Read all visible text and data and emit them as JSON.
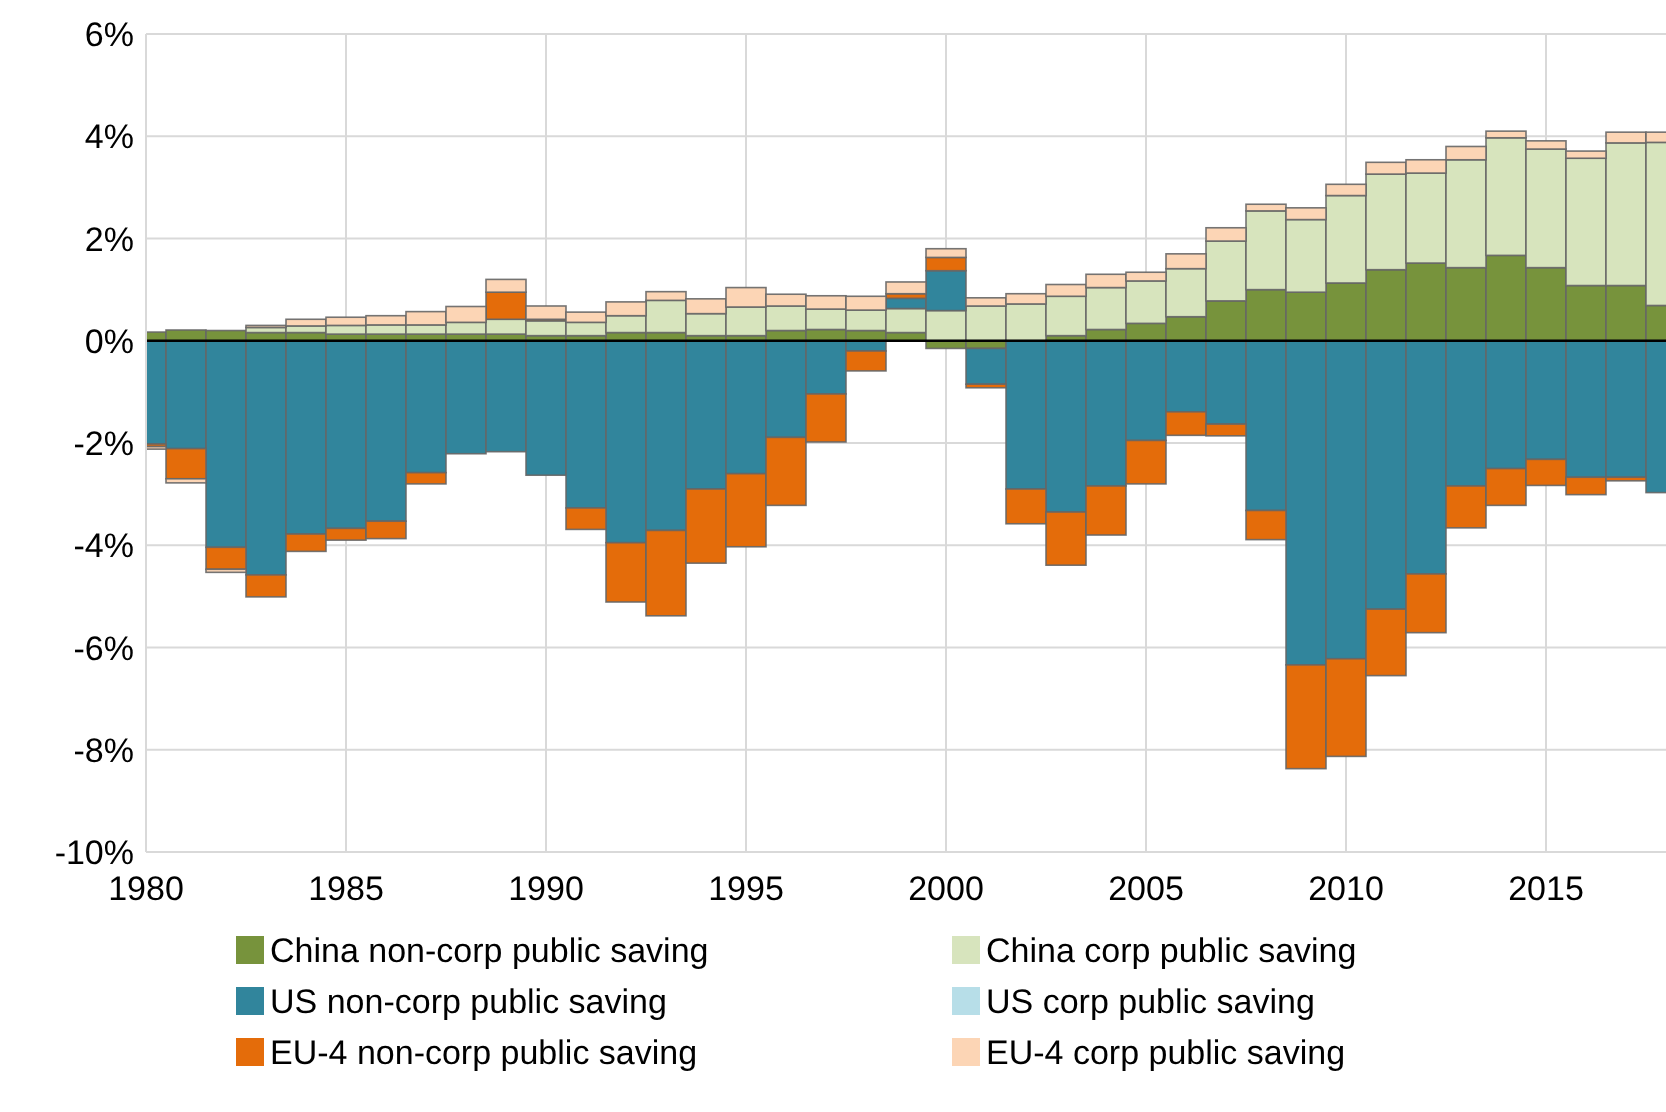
{
  "chart_data": {
    "type": "bar",
    "stacked": true,
    "x": [
      1980,
      1981,
      1982,
      1983,
      1984,
      1985,
      1986,
      1987,
      1988,
      1989,
      1990,
      1991,
      1992,
      1993,
      1994,
      1995,
      1996,
      1997,
      1998,
      1999,
      2000,
      2001,
      2002,
      2003,
      2004,
      2005,
      2006,
      2007,
      2008,
      2009,
      2010,
      2011,
      2012,
      2013,
      2014,
      2015,
      2016,
      2017,
      2018
    ],
    "series": [
      {
        "name": "China non-corp public saving",
        "color": "#77933c",
        "values": [
          0.17,
          0.21,
          0.2,
          0.16,
          0.16,
          0.13,
          0.13,
          0.13,
          0.13,
          0.13,
          0.1,
          0.1,
          0.16,
          0.16,
          0.1,
          0.1,
          0.2,
          0.22,
          0.2,
          0.16,
          -0.15,
          -0.15,
          null,
          0.1,
          0.22,
          0.34,
          0.47,
          0.78,
          1.0,
          0.95,
          1.13,
          1.39,
          1.52,
          1.43,
          1.67,
          1.43,
          1.08,
          1.08,
          0.69
        ]
      },
      {
        "name": "China corp public saving",
        "color": "#d7e4bd",
        "values": [
          null,
          null,
          null,
          0.1,
          0.13,
          0.17,
          0.18,
          0.18,
          0.23,
          0.29,
          0.29,
          0.26,
          0.33,
          0.63,
          0.43,
          0.56,
          0.48,
          0.4,
          0.4,
          0.47,
          0.59,
          0.68,
          0.72,
          0.77,
          0.82,
          0.83,
          0.94,
          1.17,
          1.54,
          1.42,
          1.71,
          1.87,
          1.76,
          2.11,
          2.3,
          2.32,
          2.49,
          2.79,
          3.19
        ]
      },
      {
        "name": "US non-corp public saving",
        "color": "#31859c",
        "values": [
          -2.02,
          -2.11,
          -4.04,
          -4.58,
          -3.78,
          -3.67,
          -3.53,
          -2.58,
          -2.21,
          -2.17,
          -2.63,
          -3.27,
          -3.95,
          -3.71,
          -2.9,
          -2.6,
          -1.89,
          -1.04,
          -0.2,
          0.2,
          0.78,
          -0.7,
          -2.9,
          -3.35,
          -2.84,
          -1.95,
          -1.39,
          -1.63,
          -3.32,
          -6.34,
          -6.22,
          -5.25,
          -4.56,
          -2.84,
          -2.5,
          -2.32,
          -2.67,
          -2.67,
          -2.97
        ]
      },
      {
        "name": "US corp public saving",
        "color": "#b7dee8",
        "values": [
          null,
          null,
          null,
          null,
          null,
          null,
          null,
          null,
          null,
          null,
          null,
          null,
          null,
          null,
          null,
          null,
          null,
          null,
          null,
          null,
          null,
          null,
          null,
          null,
          null,
          null,
          null,
          null,
          null,
          null,
          null,
          null,
          null,
          null,
          null,
          null,
          null,
          null,
          null
        ]
      },
      {
        "name": "EU-4 non-corp public saving",
        "color": "#e46c0a",
        "values": [
          -0.05,
          -0.59,
          -0.43,
          -0.43,
          -0.34,
          -0.23,
          -0.34,
          -0.22,
          null,
          0.53,
          0.03,
          -0.42,
          -1.16,
          -1.67,
          -1.45,
          -1.43,
          -1.33,
          -0.94,
          -0.39,
          0.09,
          0.26,
          -0.07,
          -0.68,
          -1.04,
          -0.96,
          -0.85,
          -0.46,
          -0.23,
          -0.57,
          -2.03,
          -1.91,
          -1.3,
          -1.15,
          -0.82,
          -0.72,
          -0.51,
          -0.34,
          -0.07,
          null
        ]
      },
      {
        "name": "EU-4 corp public saving",
        "color": "#fcd5b5",
        "values": [
          -0.05,
          -0.08,
          -0.06,
          0.04,
          0.13,
          0.16,
          0.18,
          0.26,
          0.31,
          0.25,
          0.26,
          0.2,
          0.27,
          0.17,
          0.29,
          0.38,
          0.23,
          0.26,
          0.27,
          0.23,
          0.17,
          0.16,
          0.2,
          0.23,
          0.26,
          0.17,
          0.29,
          0.26,
          0.13,
          0.23,
          0.22,
          0.23,
          0.26,
          0.26,
          0.13,
          0.16,
          0.14,
          0.21,
          0.2
        ]
      }
    ],
    "xlim": [
      1980,
      2018
    ],
    "xticks": [
      1980,
      1985,
      1990,
      1995,
      2000,
      2005,
      2010,
      2015
    ],
    "ylim": [
      -10,
      6
    ],
    "yticks": [
      {
        "value": -10,
        "label": "-10%"
      },
      {
        "value": -8,
        "label": "-8%"
      },
      {
        "value": -6,
        "label": "-6%"
      },
      {
        "value": -4,
        "label": "-4%"
      },
      {
        "value": -2,
        "label": "-2%"
      },
      {
        "value": 0,
        "label": "0%"
      },
      {
        "value": 2,
        "label": "2%"
      },
      {
        "value": 4,
        "label": "4%"
      },
      {
        "value": 6,
        "label": "6%"
      }
    ],
    "grid": true,
    "legend": "bottom"
  }
}
